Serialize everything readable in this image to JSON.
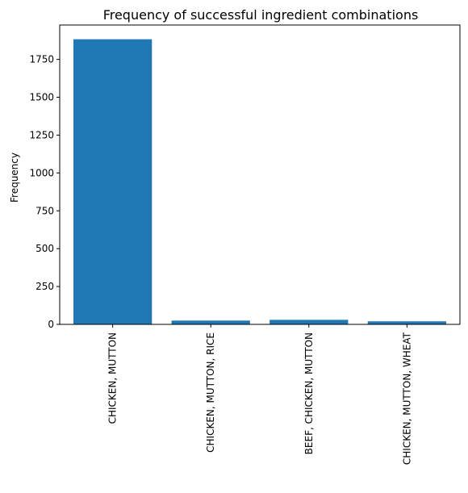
{
  "chart_data": {
    "type": "bar",
    "title": "Frequency of successful ingredient combinations",
    "xlabel": "",
    "ylabel": "Frequency",
    "categories": [
      "CHICKEN, MUTTON",
      "CHICKEN, MUTTON, RICE",
      "BEEF, CHICKEN, MUTTON",
      "CHICKEN, MUTTON, WHEAT"
    ],
    "values": [
      1883,
      25,
      30,
      20
    ],
    "ylim": [
      0,
      1977
    ],
    "yticks": [
      0,
      250,
      500,
      750,
      1000,
      1250,
      1500,
      1750
    ],
    "grid": false,
    "bar_color": "#1f77b4"
  }
}
